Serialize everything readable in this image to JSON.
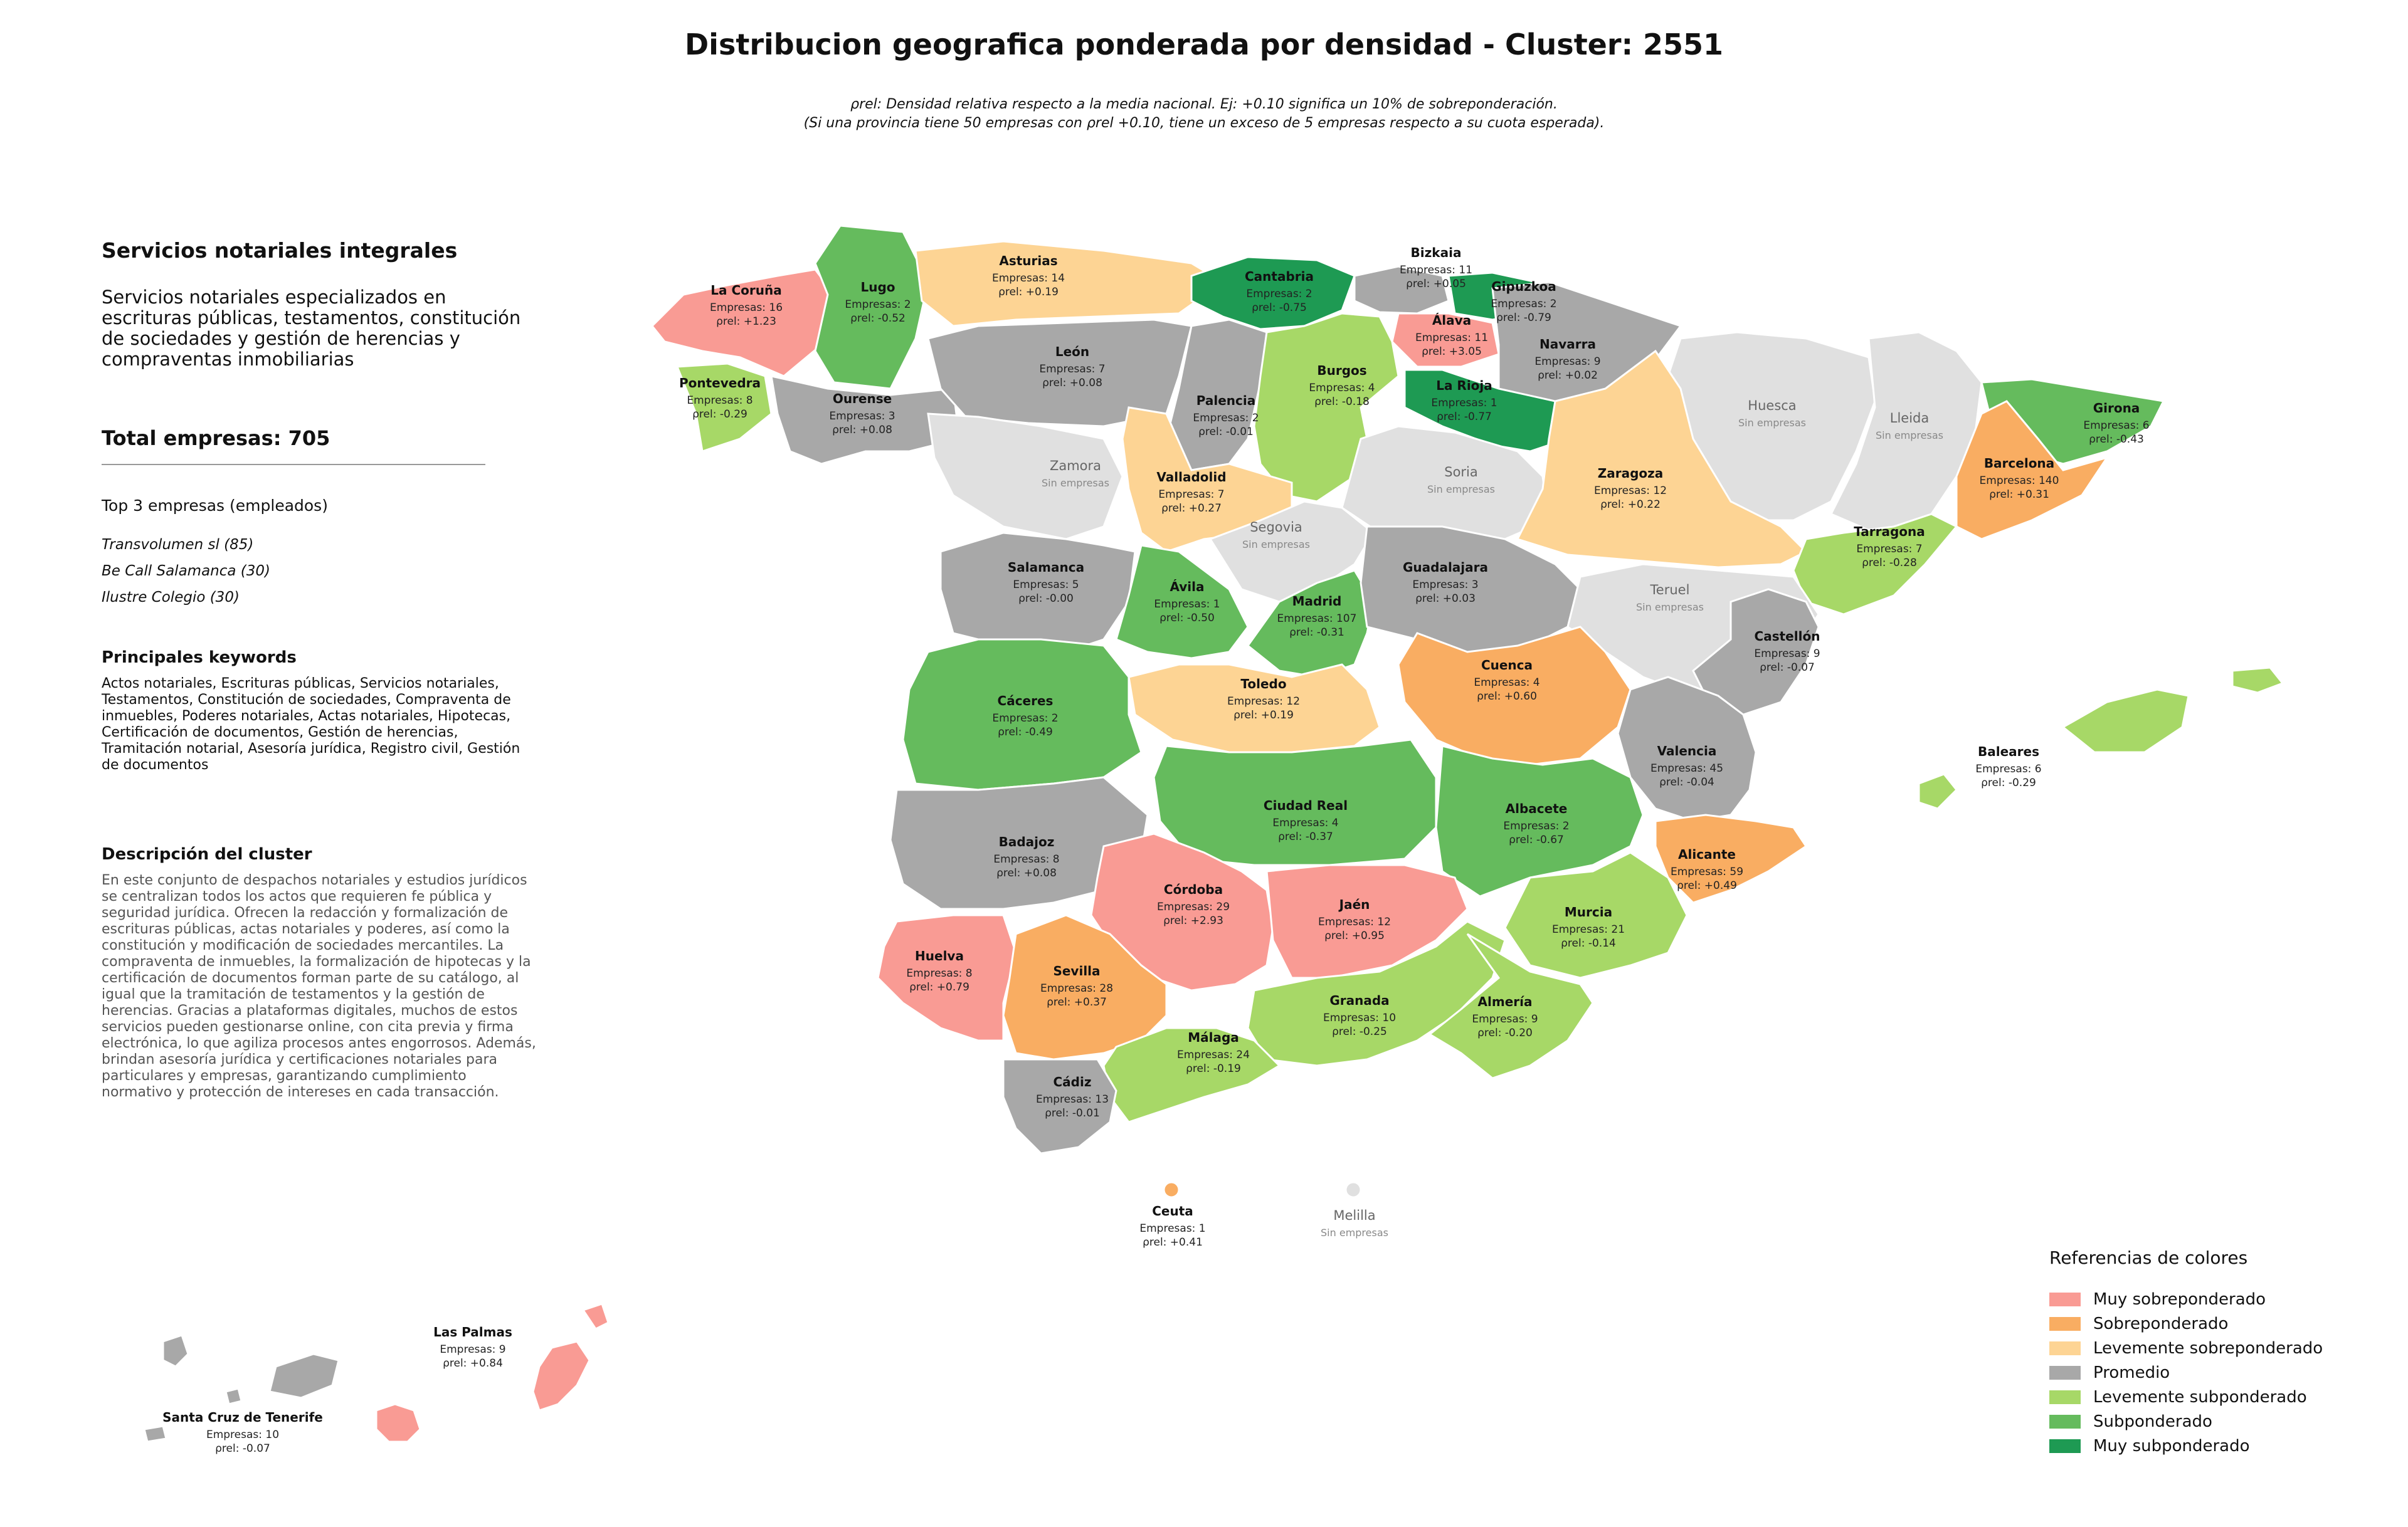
{
  "title": "Distribucion geografica ponderada por densidad - Cluster: 2551",
  "subtitle_line1": "ρrel: Densidad relativa respecto a la media nacional. Ej: +0.10 significa un 10% de sobreponderación.",
  "subtitle_line2": "(Si una provincia tiene 50 empresas con ρrel +0.10, tiene un exceso de 5 empresas respecto a su cuota esperada).",
  "sidebar": {
    "cluster_name": "Servicios notariales integrales",
    "cluster_summary": "Servicios notariales especializados en escrituras públicas, testamentos, constitución de sociedades y gestión de herencias y compraventas inmobiliarias",
    "total": "Total empresas: 705",
    "top3_heading": "Top 3 empresas (empleados)",
    "top3": [
      "Transvolumen sl (85)",
      "Be Call Salamanca (30)",
      "Ilustre Colegio (30)"
    ],
    "keywords_heading": "Principales keywords",
    "keywords": "Actos notariales, Escrituras públicas, Servicios notariales, Testamentos, Constitución de sociedades, Compraventa de inmuebles, Poderes notariales, Actas notariales, Hipotecas, Certificación de documentos, Gestión de herencias, Tramitación notarial, Asesoría jurídica, Registro civil, Gestión de documentos",
    "description_heading": "Descripción del cluster",
    "description": "En este conjunto de despachos notariales y estudios jurídicos se centralizan todos los actos que requieren fe pública y seguridad jurídica. Ofrecen la redacción y formalización de escrituras públicas, actas notariales y poderes, así como la constitución y modificación de sociedades mercantiles. La compraventa de inmuebles, la formalización de hipotecas y la certificación de documentos forman parte de su catálogo, al igual que la tramitación de testamentos y la gestión de herencias. Gracias a plataformas digitales, muchos de estos servicios pueden gestionarse online, con cita previa y firma electrónica, lo que agiliza procesos antes engorrosos. Además, brindan asesoría jurídica y certificaciones notariales para particulares y empresas, garantizando cumplimiento normativo y protección de intereses en cada transacción."
  },
  "colors": {
    "muy_sobre": "#f99b94",
    "sobre": "#f9ad62",
    "lev_sobre": "#fdd494",
    "promedio": "#a8a8a8",
    "lev_sub": "#a7d867",
    "sub": "#65bb5d",
    "muy_sub": "#1e9a53",
    "empty": "#e0e0e0"
  },
  "legend": {
    "title": "Referencias de colores",
    "items": [
      {
        "label": "Muy sobreponderado",
        "color": "#f99b94"
      },
      {
        "label": "Sobreponderado",
        "color": "#f9ad62"
      },
      {
        "label": "Levemente sobreponderado",
        "color": "#fdd494"
      },
      {
        "label": "Promedio",
        "color": "#a8a8a8"
      },
      {
        "label": "Levemente subponderado",
        "color": "#a7d867"
      },
      {
        "label": "Subponderado",
        "color": "#65bb5d"
      },
      {
        "label": "Muy subponderado",
        "color": "#1e9a53"
      }
    ]
  },
  "provinces": [
    {
      "name": "La Coruña",
      "info": "Empresas: 16",
      "rho": "ρrel: +1.23",
      "cat": "muy_sobre"
    },
    {
      "name": "Lugo",
      "info": "Empresas: 2",
      "rho": "ρrel: -0.52",
      "cat": "sub"
    },
    {
      "name": "Asturias",
      "info": "Empresas: 14",
      "rho": "ρrel: +0.19",
      "cat": "lev_sobre"
    },
    {
      "name": "Cantabria",
      "info": "Empresas: 2",
      "rho": "ρrel: -0.75",
      "cat": "muy_sub"
    },
    {
      "name": "Bizkaia",
      "info": "Empresas: 11",
      "rho": "ρrel: +0.05",
      "cat": "promedio"
    },
    {
      "name": "Gipuzkoa",
      "info": "Empresas: 2",
      "rho": "ρrel: -0.79",
      "cat": "muy_sub"
    },
    {
      "name": "Álava",
      "info": "Empresas: 11",
      "rho": "ρrel: +3.05",
      "cat": "muy_sobre"
    },
    {
      "name": "Navarra",
      "info": "Empresas: 9",
      "rho": "ρrel: +0.02",
      "cat": "promedio"
    },
    {
      "name": "Pontevedra",
      "info": "Empresas: 8",
      "rho": "ρrel: -0.29",
      "cat": "lev_sub"
    },
    {
      "name": "Ourense",
      "info": "Empresas: 3",
      "rho": "ρrel: +0.08",
      "cat": "promedio"
    },
    {
      "name": "León",
      "info": "Empresas: 7",
      "rho": "ρrel: +0.08",
      "cat": "promedio"
    },
    {
      "name": "Palencia",
      "info": "Empresas: 2",
      "rho": "ρrel: -0.01",
      "cat": "promedio"
    },
    {
      "name": "Burgos",
      "info": "Empresas: 4",
      "rho": "ρrel: -0.18",
      "cat": "lev_sub"
    },
    {
      "name": "La Rioja",
      "info": "Empresas: 1",
      "rho": "ρrel: -0.77",
      "cat": "muy_sub"
    },
    {
      "name": "Huesca",
      "info": "Sin empresas",
      "rho": "",
      "cat": "empty"
    },
    {
      "name": "Lleida",
      "info": "Sin empresas",
      "rho": "",
      "cat": "empty"
    },
    {
      "name": "Girona",
      "info": "Empresas: 6",
      "rho": "ρrel: -0.43",
      "cat": "sub"
    },
    {
      "name": "Zamora",
      "info": "Sin empresas",
      "rho": "",
      "cat": "empty"
    },
    {
      "name": "Valladolid",
      "info": "Empresas: 7",
      "rho": "ρrel: +0.27",
      "cat": "lev_sobre"
    },
    {
      "name": "Soria",
      "info": "Sin empresas",
      "rho": "",
      "cat": "empty"
    },
    {
      "name": "Zaragoza",
      "info": "Empresas: 12",
      "rho": "ρrel: +0.22",
      "cat": "lev_sobre"
    },
    {
      "name": "Barcelona",
      "info": "Empresas: 140",
      "rho": "ρrel: +0.31",
      "cat": "sobre"
    },
    {
      "name": "Segovia",
      "info": "Sin empresas",
      "rho": "",
      "cat": "empty"
    },
    {
      "name": "Tarragona",
      "info": "Empresas: 7",
      "rho": "ρrel: -0.28",
      "cat": "lev_sub"
    },
    {
      "name": "Salamanca",
      "info": "Empresas: 5",
      "rho": "ρrel: -0.00",
      "cat": "promedio"
    },
    {
      "name": "Ávila",
      "info": "Empresas: 1",
      "rho": "ρrel: -0.50",
      "cat": "sub"
    },
    {
      "name": "Madrid",
      "info": "Empresas: 107",
      "rho": "ρrel: -0.31",
      "cat": "sub"
    },
    {
      "name": "Guadalajara",
      "info": "Empresas: 3",
      "rho": "ρrel: +0.03",
      "cat": "promedio"
    },
    {
      "name": "Teruel",
      "info": "Sin empresas",
      "rho": "",
      "cat": "empty"
    },
    {
      "name": "Castellón",
      "info": "Empresas: 9",
      "rho": "ρrel: -0.07",
      "cat": "promedio"
    },
    {
      "name": "Cáceres",
      "info": "Empresas: 2",
      "rho": "ρrel: -0.49",
      "cat": "sub"
    },
    {
      "name": "Toledo",
      "info": "Empresas: 12",
      "rho": "ρrel: +0.19",
      "cat": "lev_sobre"
    },
    {
      "name": "Cuenca",
      "info": "Empresas: 4",
      "rho": "ρrel: +0.60",
      "cat": "sobre"
    },
    {
      "name": "Valencia",
      "info": "Empresas: 45",
      "rho": "ρrel: -0.04",
      "cat": "promedio"
    },
    {
      "name": "Baleares",
      "info": "Empresas: 6",
      "rho": "ρrel: -0.29",
      "cat": "lev_sub"
    },
    {
      "name": "Badajoz",
      "info": "Empresas: 8",
      "rho": "ρrel: +0.08",
      "cat": "promedio"
    },
    {
      "name": "Ciudad Real",
      "info": "Empresas: 4",
      "rho": "ρrel: -0.37",
      "cat": "sub"
    },
    {
      "name": "Albacete",
      "info": "Empresas: 2",
      "rho": "ρrel: -0.67",
      "cat": "sub"
    },
    {
      "name": "Alicante",
      "info": "Empresas: 59",
      "rho": "ρrel: +0.49",
      "cat": "sobre"
    },
    {
      "name": "Córdoba",
      "info": "Empresas: 29",
      "rho": "ρrel: +2.93",
      "cat": "muy_sobre"
    },
    {
      "name": "Jaén",
      "info": "Empresas: 12",
      "rho": "ρrel: +0.95",
      "cat": "muy_sobre"
    },
    {
      "name": "Murcia",
      "info": "Empresas: 21",
      "rho": "ρrel: -0.14",
      "cat": "lev_sub"
    },
    {
      "name": "Huelva",
      "info": "Empresas: 8",
      "rho": "ρrel: +0.79",
      "cat": "muy_sobre"
    },
    {
      "name": "Sevilla",
      "info": "Empresas: 28",
      "rho": "ρrel: +0.37",
      "cat": "sobre"
    },
    {
      "name": "Granada",
      "info": "Empresas: 10",
      "rho": "ρrel: -0.25",
      "cat": "lev_sub"
    },
    {
      "name": "Almería",
      "info": "Empresas: 9",
      "rho": "ρrel: -0.20",
      "cat": "lev_sub"
    },
    {
      "name": "Málaga",
      "info": "Empresas: 24",
      "rho": "ρrel: -0.19",
      "cat": "lev_sub"
    },
    {
      "name": "Cádiz",
      "info": "Empresas: 13",
      "rho": "ρrel: -0.01",
      "cat": "promedio"
    },
    {
      "name": "Ceuta",
      "info": "Empresas: 1",
      "rho": "ρrel: +0.41",
      "cat": "sobre"
    },
    {
      "name": "Melilla",
      "info": "Sin empresas",
      "rho": "",
      "cat": "empty"
    },
    {
      "name": "Las Palmas",
      "info": "Empresas: 9",
      "rho": "ρrel: +0.84",
      "cat": "muy_sobre"
    },
    {
      "name": "Santa Cruz de Tenerife",
      "info": "Empresas: 10",
      "rho": "ρrel: -0.07",
      "cat": "promedio"
    }
  ]
}
